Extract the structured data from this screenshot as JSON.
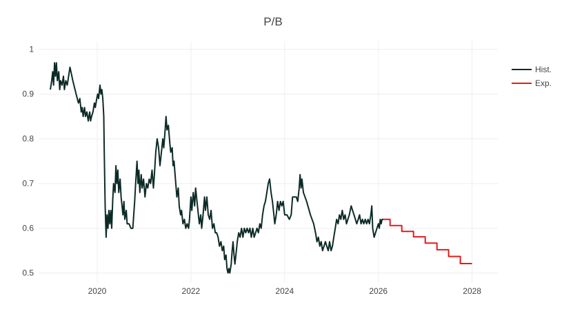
{
  "chart_data": {
    "type": "line",
    "title": "P/B",
    "xlabel": "",
    "ylabel": "",
    "xlim": [
      2018.75,
      2028.55
    ],
    "ylim": [
      0.478,
      1.018
    ],
    "x_ticks": [
      {
        "value": 2020,
        "label": "2020"
      },
      {
        "value": 2022,
        "label": "2022"
      },
      {
        "value": 2024,
        "label": "2024"
      },
      {
        "value": 2026,
        "label": "2026"
      },
      {
        "value": 2028,
        "label": "2028"
      }
    ],
    "y_ticks": [
      {
        "value": 0.5,
        "label": "0.5"
      },
      {
        "value": 0.6,
        "label": "0.6"
      },
      {
        "value": 0.7,
        "label": "0.7"
      },
      {
        "value": 0.8,
        "label": "0.8"
      },
      {
        "value": 0.9,
        "label": "0.9"
      },
      {
        "value": 1.0,
        "label": "1"
      }
    ],
    "grid": true,
    "legend": "top-right",
    "series": [
      {
        "name": "Hist.",
        "color": "#0c2a26",
        "points": [
          [
            2019.0,
            0.91
          ],
          [
            2019.03,
            0.93
          ],
          [
            2019.05,
            0.95
          ],
          [
            2019.07,
            0.92
          ],
          [
            2019.09,
            0.97
          ],
          [
            2019.11,
            0.94
          ],
          [
            2019.13,
            0.97
          ],
          [
            2019.15,
            0.93
          ],
          [
            2019.18,
            0.95
          ],
          [
            2019.2,
            0.91
          ],
          [
            2019.22,
            0.93
          ],
          [
            2019.25,
            0.92
          ],
          [
            2019.28,
            0.94
          ],
          [
            2019.3,
            0.91
          ],
          [
            2019.33,
            0.93
          ],
          [
            2019.36,
            0.92
          ],
          [
            2019.39,
            0.94
          ],
          [
            2019.42,
            0.96
          ],
          [
            2019.48,
            0.93
          ],
          [
            2019.55,
            0.9
          ],
          [
            2019.6,
            0.88
          ],
          [
            2019.63,
            0.89
          ],
          [
            2019.66,
            0.86
          ],
          [
            2019.68,
            0.87
          ],
          [
            2019.7,
            0.85
          ],
          [
            2019.73,
            0.87
          ],
          [
            2019.75,
            0.85
          ],
          [
            2019.78,
            0.86
          ],
          [
            2019.81,
            0.84
          ],
          [
            2019.84,
            0.86
          ],
          [
            2019.86,
            0.84
          ],
          [
            2019.88,
            0.85
          ],
          [
            2019.91,
            0.86
          ],
          [
            2019.94,
            0.88
          ],
          [
            2019.96,
            0.87
          ],
          [
            2019.99,
            0.89
          ],
          [
            2020.01,
            0.9
          ],
          [
            2020.03,
            0.89
          ],
          [
            2020.06,
            0.92
          ],
          [
            2020.08,
            0.9
          ],
          [
            2020.1,
            0.91
          ],
          [
            2020.12,
            0.89
          ],
          [
            2020.14,
            0.85
          ],
          [
            2020.15,
            0.78
          ],
          [
            2020.17,
            0.65
          ],
          [
            2020.19,
            0.58
          ],
          [
            2020.21,
            0.63
          ],
          [
            2020.23,
            0.6
          ],
          [
            2020.25,
            0.64
          ],
          [
            2020.27,
            0.61
          ],
          [
            2020.29,
            0.64
          ],
          [
            2020.31,
            0.6
          ],
          [
            2020.33,
            0.66
          ],
          [
            2020.35,
            0.7
          ],
          [
            2020.38,
            0.68
          ],
          [
            2020.4,
            0.74
          ],
          [
            2020.42,
            0.7
          ],
          [
            2020.44,
            0.73
          ],
          [
            2020.46,
            0.68
          ],
          [
            2020.49,
            0.71
          ],
          [
            2020.51,
            0.67
          ],
          [
            2020.53,
            0.65
          ],
          [
            2020.55,
            0.63
          ],
          [
            2020.57,
            0.66
          ],
          [
            2020.59,
            0.62
          ],
          [
            2020.62,
            0.64
          ],
          [
            2020.64,
            0.61
          ],
          [
            2020.68,
            0.61
          ],
          [
            2020.72,
            0.6
          ],
          [
            2020.76,
            0.6
          ],
          [
            2020.8,
            0.66
          ],
          [
            2020.82,
            0.7
          ],
          [
            2020.85,
            0.75
          ],
          [
            2020.87,
            0.7
          ],
          [
            2020.89,
            0.73
          ],
          [
            2020.91,
            0.68
          ],
          [
            2020.94,
            0.72
          ],
          [
            2020.96,
            0.69
          ],
          [
            2020.99,
            0.71
          ],
          [
            2021.02,
            0.67
          ],
          [
            2021.05,
            0.7
          ],
          [
            2021.08,
            0.69
          ],
          [
            2021.11,
            0.71
          ],
          [
            2021.14,
            0.7
          ],
          [
            2021.17,
            0.73
          ],
          [
            2021.2,
            0.69
          ],
          [
            2021.22,
            0.72
          ],
          [
            2021.25,
            0.77
          ],
          [
            2021.28,
            0.8
          ],
          [
            2021.31,
            0.78
          ],
          [
            2021.34,
            0.74
          ],
          [
            2021.37,
            0.77
          ],
          [
            2021.4,
            0.8
          ],
          [
            2021.42,
            0.78
          ],
          [
            2021.45,
            0.82
          ],
          [
            2021.47,
            0.85
          ],
          [
            2021.49,
            0.82
          ],
          [
            2021.52,
            0.83
          ],
          [
            2021.55,
            0.79
          ],
          [
            2021.57,
            0.77
          ],
          [
            2021.6,
            0.78
          ],
          [
            2021.62,
            0.74
          ],
          [
            2021.64,
            0.75
          ],
          [
            2021.67,
            0.71
          ],
          [
            2021.7,
            0.67
          ],
          [
            2021.73,
            0.69
          ],
          [
            2021.75,
            0.65
          ],
          [
            2021.78,
            0.63
          ],
          [
            2021.8,
            0.64
          ],
          [
            2021.83,
            0.61
          ],
          [
            2021.86,
            0.62
          ],
          [
            2021.89,
            0.6
          ],
          [
            2021.92,
            0.61
          ],
          [
            2021.95,
            0.6
          ],
          [
            2021.97,
            0.62
          ],
          [
            2022.0,
            0.67
          ],
          [
            2022.02,
            0.64
          ],
          [
            2022.05,
            0.68
          ],
          [
            2022.08,
            0.65
          ],
          [
            2022.1,
            0.69
          ],
          [
            2022.13,
            0.66
          ],
          [
            2022.16,
            0.63
          ],
          [
            2022.18,
            0.61
          ],
          [
            2022.21,
            0.63
          ],
          [
            2022.23,
            0.6
          ],
          [
            2022.26,
            0.63
          ],
          [
            2022.29,
            0.67
          ],
          [
            2022.31,
            0.64
          ],
          [
            2022.34,
            0.67
          ],
          [
            2022.37,
            0.63
          ],
          [
            2022.4,
            0.62
          ],
          [
            2022.43,
            0.64
          ],
          [
            2022.46,
            0.6
          ],
          [
            2022.49,
            0.61
          ],
          [
            2022.52,
            0.59
          ],
          [
            2022.55,
            0.59
          ],
          [
            2022.58,
            0.58
          ],
          [
            2022.61,
            0.56
          ],
          [
            2022.64,
            0.57
          ],
          [
            2022.67,
            0.55
          ],
          [
            2022.7,
            0.56
          ],
          [
            2022.72,
            0.53
          ],
          [
            2022.75,
            0.54
          ],
          [
            2022.77,
            0.51
          ],
          [
            2022.79,
            0.5
          ],
          [
            2022.81,
            0.51
          ],
          [
            2022.83,
            0.5
          ],
          [
            2022.86,
            0.52
          ],
          [
            2022.88,
            0.55
          ],
          [
            2022.9,
            0.57
          ],
          [
            2022.92,
            0.54
          ],
          [
            2022.94,
            0.52
          ],
          [
            2022.97,
            0.55
          ],
          [
            2022.99,
            0.57
          ],
          [
            2023.02,
            0.59
          ],
          [
            2023.05,
            0.58
          ],
          [
            2023.08,
            0.6
          ],
          [
            2023.11,
            0.58
          ],
          [
            2023.14,
            0.6
          ],
          [
            2023.17,
            0.59
          ],
          [
            2023.2,
            0.6
          ],
          [
            2023.23,
            0.59
          ],
          [
            2023.26,
            0.6
          ],
          [
            2023.29,
            0.58
          ],
          [
            2023.32,
            0.6
          ],
          [
            2023.35,
            0.58
          ],
          [
            2023.38,
            0.59
          ],
          [
            2023.41,
            0.6
          ],
          [
            2023.44,
            0.59
          ],
          [
            2023.47,
            0.61
          ],
          [
            2023.5,
            0.6
          ],
          [
            2023.53,
            0.63
          ],
          [
            2023.56,
            0.65
          ],
          [
            2023.59,
            0.66
          ],
          [
            2023.62,
            0.68
          ],
          [
            2023.65,
            0.7
          ],
          [
            2023.68,
            0.71
          ],
          [
            2023.71,
            0.68
          ],
          [
            2023.74,
            0.66
          ],
          [
            2023.77,
            0.63
          ],
          [
            2023.79,
            0.61
          ],
          [
            2023.82,
            0.63
          ],
          [
            2023.85,
            0.66
          ],
          [
            2023.88,
            0.64
          ],
          [
            2023.91,
            0.66
          ],
          [
            2023.94,
            0.65
          ],
          [
            2023.97,
            0.66
          ],
          [
            2024.0,
            0.63
          ],
          [
            2024.05,
            0.63
          ],
          [
            2024.1,
            0.62
          ],
          [
            2024.14,
            0.63
          ],
          [
            2024.17,
            0.67
          ],
          [
            2024.21,
            0.67
          ],
          [
            2024.25,
            0.67
          ],
          [
            2024.28,
            0.66
          ],
          [
            2024.31,
            0.69
          ],
          [
            2024.33,
            0.72
          ],
          [
            2024.35,
            0.69
          ],
          [
            2024.37,
            0.71
          ],
          [
            2024.4,
            0.68
          ],
          [
            2024.47,
            0.66
          ],
          [
            2024.55,
            0.63
          ],
          [
            2024.62,
            0.61
          ],
          [
            2024.66,
            0.59
          ],
          [
            2024.69,
            0.57
          ],
          [
            2024.72,
            0.58
          ],
          [
            2024.75,
            0.56
          ],
          [
            2024.78,
            0.57
          ],
          [
            2024.81,
            0.55
          ],
          [
            2024.84,
            0.56
          ],
          [
            2024.87,
            0.57
          ],
          [
            2024.9,
            0.56
          ],
          [
            2024.93,
            0.55
          ],
          [
            2024.96,
            0.57
          ],
          [
            2024.99,
            0.55
          ],
          [
            2025.02,
            0.56
          ],
          [
            2025.05,
            0.58
          ],
          [
            2025.08,
            0.6
          ],
          [
            2025.11,
            0.62
          ],
          [
            2025.14,
            0.61
          ],
          [
            2025.17,
            0.63
          ],
          [
            2025.2,
            0.62
          ],
          [
            2025.23,
            0.64
          ],
          [
            2025.26,
            0.62
          ],
          [
            2025.29,
            0.63
          ],
          [
            2025.32,
            0.61
          ],
          [
            2025.35,
            0.62
          ],
          [
            2025.38,
            0.63
          ],
          [
            2025.42,
            0.65
          ],
          [
            2025.45,
            0.64
          ],
          [
            2025.48,
            0.63
          ],
          [
            2025.51,
            0.62
          ],
          [
            2025.54,
            0.61
          ],
          [
            2025.57,
            0.62
          ],
          [
            2025.6,
            0.63
          ],
          [
            2025.63,
            0.61
          ],
          [
            2025.66,
            0.62
          ],
          [
            2025.69,
            0.61
          ],
          [
            2025.72,
            0.62
          ],
          [
            2025.75,
            0.61
          ],
          [
            2025.78,
            0.62
          ],
          [
            2025.81,
            0.61
          ],
          [
            2025.84,
            0.63
          ],
          [
            2025.86,
            0.65
          ],
          [
            2025.88,
            0.6
          ],
          [
            2025.91,
            0.58
          ],
          [
            2025.94,
            0.59
          ],
          [
            2025.97,
            0.6
          ],
          [
            2026.0,
            0.61
          ],
          [
            2026.02,
            0.6
          ],
          [
            2026.04,
            0.62
          ],
          [
            2026.06,
            0.61
          ],
          [
            2026.08,
            0.62
          ],
          [
            2026.1,
            0.62
          ]
        ]
      },
      {
        "name": "Exp.",
        "color": "#e41a1c",
        "shape": "step",
        "points": [
          [
            2026.1,
            0.62
          ],
          [
            2026.25,
            0.62
          ],
          [
            2026.25,
            0.606
          ],
          [
            2026.5,
            0.606
          ],
          [
            2026.5,
            0.593
          ],
          [
            2026.75,
            0.593
          ],
          [
            2026.75,
            0.581
          ],
          [
            2027.0,
            0.581
          ],
          [
            2027.0,
            0.567
          ],
          [
            2027.25,
            0.567
          ],
          [
            2027.25,
            0.552
          ],
          [
            2027.5,
            0.552
          ],
          [
            2027.5,
            0.537
          ],
          [
            2027.75,
            0.537
          ],
          [
            2027.75,
            0.521
          ],
          [
            2028.0,
            0.521
          ]
        ]
      }
    ]
  }
}
